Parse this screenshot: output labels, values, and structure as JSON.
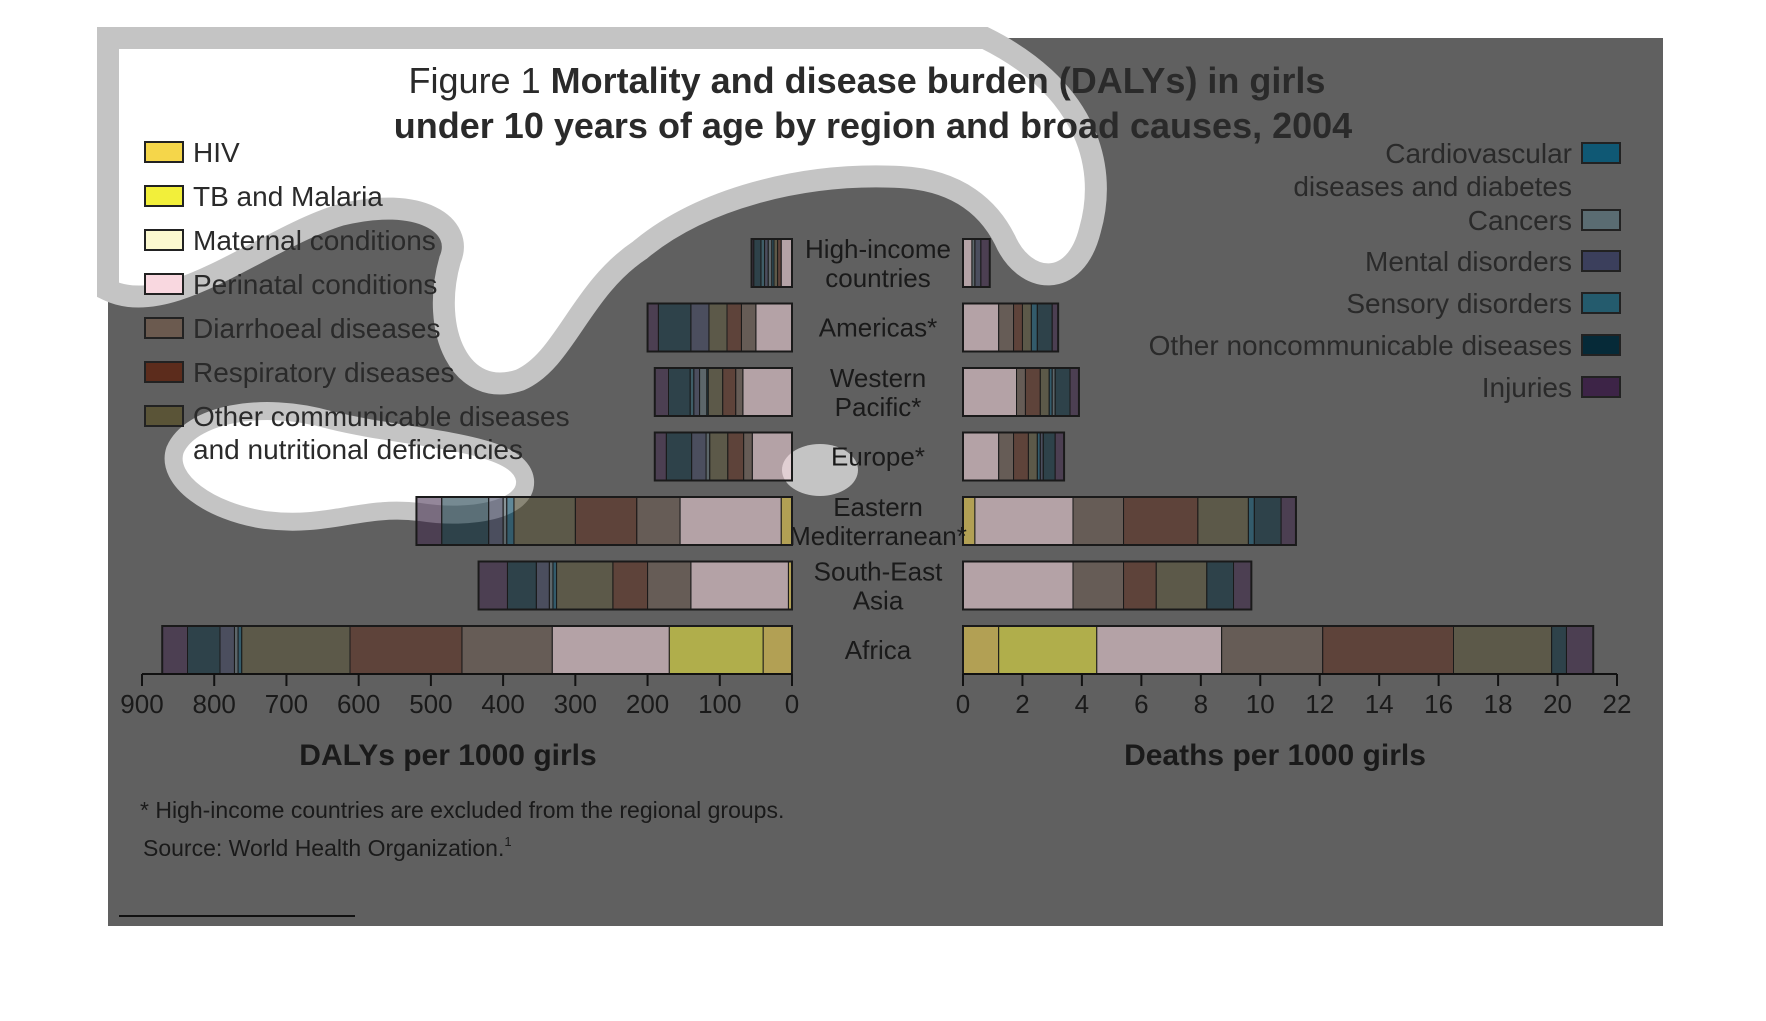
{
  "title": {
    "prefix": "Figure 1",
    "line1_bold": "Mortality and disease burden (DALYs) in girls",
    "line2_bold": "under 10 years of age by region and broad causes, 2004"
  },
  "legend_left": [
    {
      "name": "HIV",
      "color": "#f5d64a"
    },
    {
      "name": "TB and Malaria",
      "color": "#f2ef3a"
    },
    {
      "name": "Maternal conditions",
      "color": "#fbf8cf"
    },
    {
      "name": "Perinatal conditions",
      "color": "#f9d8e0"
    },
    {
      "name": "Diarrhoeal diseases",
      "color": "#6b5a4f"
    },
    {
      "name": "Respiratory diseases",
      "color": "#5c2c1c"
    },
    {
      "name": "Other communicable diseases",
      "name_line2": "and nutritional deficiencies",
      "color": "#5a5437"
    }
  ],
  "legend_right": [
    {
      "name": "Cardiovascular",
      "name_line2": "diseases and diabetes",
      "color": "#0f5874"
    },
    {
      "name": "Cancers",
      "color": "#5a6c72"
    },
    {
      "name": "Mental disorders",
      "color": "#3b3f5c"
    },
    {
      "name": "Sensory disorders",
      "color": "#245b6d"
    },
    {
      "name": "Other noncommunicable diseases",
      "color": "#062a38"
    },
    {
      "name": "Injuries",
      "color": "#3d2447"
    }
  ],
  "footnote": "* High-income countries are excluded from the regional groups.",
  "source": "Source: World Health Organization.",
  "source_sup": "1",
  "chart_data": [
    {
      "type": "bar",
      "orientation": "horizontal",
      "stacked": true,
      "xlabel": "DALYs per 1000 girls",
      "xlim": [
        900,
        0
      ],
      "xticks": [
        900,
        800,
        700,
        600,
        500,
        400,
        300,
        200,
        100,
        0
      ],
      "categories": [
        "High-income countries",
        "Americas*",
        "Western Pacific*",
        "Europe*",
        "Eastern Mediterranean*",
        "South-East Asia",
        "Africa"
      ],
      "series": [
        {
          "name": "HIV",
          "color": "#f5d64a",
          "values": [
            0,
            0,
            0,
            0,
            15,
            5,
            40
          ]
        },
        {
          "name": "TB and Malaria",
          "color": "#f2ef3a",
          "values": [
            0,
            0,
            0,
            0,
            0,
            0,
            130
          ]
        },
        {
          "name": "Perinatal conditions",
          "color": "#f9d8e0",
          "values": [
            15,
            50,
            68,
            55,
            140,
            135,
            162
          ]
        },
        {
          "name": "Diarrhoeal diseases",
          "color": "#6b5a4f",
          "values": [
            0,
            20,
            10,
            12,
            60,
            60,
            125
          ]
        },
        {
          "name": "Respiratory diseases",
          "color": "#5c2c1c",
          "values": [
            5,
            20,
            18,
            22,
            85,
            48,
            155
          ]
        },
        {
          "name": "Other communicable diseases and nutritional deficiencies",
          "color": "#5a5437",
          "values": [
            5,
            25,
            20,
            25,
            85,
            78,
            150
          ]
        },
        {
          "name": "Cardiovascular diseases and diabetes",
          "color": "#0f5874",
          "values": [
            3,
            0,
            2,
            0,
            10,
            5,
            5
          ]
        },
        {
          "name": "Cancers",
          "color": "#5a6c72",
          "values": [
            5,
            0,
            10,
            5,
            5,
            5,
            5
          ]
        },
        {
          "name": "Mental disorders",
          "color": "#3b3f5c",
          "values": [
            5,
            25,
            8,
            20,
            20,
            18,
            20
          ]
        },
        {
          "name": "Sensory disorders",
          "color": "#245b6d",
          "values": [
            5,
            0,
            5,
            0,
            0,
            0,
            0
          ]
        },
        {
          "name": "Other noncommunicable diseases",
          "color": "#062a38",
          "values": [
            10,
            45,
            30,
            35,
            65,
            40,
            45
          ]
        },
        {
          "name": "Injuries",
          "color": "#3d2447",
          "values": [
            3,
            15,
            19,
            16,
            35,
            40,
            35
          ]
        }
      ]
    },
    {
      "type": "bar",
      "orientation": "horizontal",
      "stacked": true,
      "xlabel": "Deaths per 1000 girls",
      "xlim": [
        0,
        22
      ],
      "xticks": [
        0,
        2,
        4,
        6,
        8,
        10,
        12,
        14,
        16,
        18,
        20,
        22
      ],
      "categories": [
        "High-income countries",
        "Americas*",
        "Western Pacific*",
        "Europe*",
        "Eastern Mediterranean*",
        "South-East Asia",
        "Africa"
      ],
      "series": [
        {
          "name": "HIV",
          "color": "#f5d64a",
          "values": [
            0,
            0,
            0,
            0,
            0.4,
            0,
            1.2
          ]
        },
        {
          "name": "TB and Malaria",
          "color": "#f2ef3a",
          "values": [
            0,
            0,
            0,
            0,
            0,
            0,
            3.3
          ]
        },
        {
          "name": "Perinatal conditions",
          "color": "#f9d8e0",
          "values": [
            0.3,
            1.2,
            1.8,
            1.2,
            3.3,
            3.7,
            4.2
          ]
        },
        {
          "name": "Diarrhoeal diseases",
          "color": "#6b5a4f",
          "values": [
            0,
            0.5,
            0.3,
            0.5,
            1.7,
            1.7,
            3.4
          ]
        },
        {
          "name": "Respiratory diseases",
          "color": "#5c2c1c",
          "values": [
            0,
            0.3,
            0.5,
            0.5,
            2.5,
            1.1,
            4.4
          ]
        },
        {
          "name": "Other communicable diseases and nutritional deficiencies",
          "color": "#5a5437",
          "values": [
            0,
            0.3,
            0.3,
            0.3,
            1.7,
            1.7,
            3.3
          ]
        },
        {
          "name": "Cardiovascular diseases and diabetes",
          "color": "#0f5874",
          "values": [
            0,
            0.2,
            0.1,
            0.1,
            0.2,
            0,
            0
          ]
        },
        {
          "name": "Cancers",
          "color": "#5a6c72",
          "values": [
            0.1,
            0,
            0.1,
            0,
            0,
            0,
            0
          ]
        },
        {
          "name": "Mental disorders",
          "color": "#3b3f5c",
          "values": [
            0.2,
            0,
            0,
            0.1,
            0,
            0,
            0
          ]
        },
        {
          "name": "Sensory disorders",
          "color": "#245b6d",
          "values": [
            0,
            0,
            0,
            0,
            0,
            0,
            0
          ]
        },
        {
          "name": "Other noncommunicable diseases",
          "color": "#062a38",
          "values": [
            0,
            0.5,
            0.5,
            0.4,
            0.9,
            0.9,
            0.5
          ]
        },
        {
          "name": "Injuries",
          "color": "#3d2447",
          "values": [
            0.3,
            0.2,
            0.3,
            0.3,
            0.5,
            0.6,
            0.9
          ]
        }
      ]
    }
  ],
  "category_labels": [
    {
      "line1": "High-income",
      "line2": "countries"
    },
    {
      "line1": "Americas*",
      "line2": ""
    },
    {
      "line1": "Western",
      "line2": "Pacific*"
    },
    {
      "line1": "Europe*",
      "line2": ""
    },
    {
      "line1": "Eastern",
      "line2": "Mediterranean*"
    },
    {
      "line1": "South-East",
      "line2": "Asia"
    },
    {
      "line1": "Africa",
      "line2": ""
    }
  ],
  "colors": {
    "panel_background": "#606060",
    "text": "#1a1a1a",
    "blob_fill": "#ffffff",
    "blob_ring": "#c4c4c4"
  }
}
